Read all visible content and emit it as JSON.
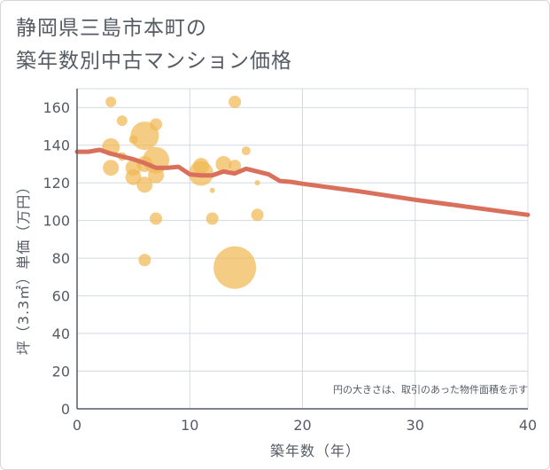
{
  "title_lines": [
    "静岡県三島市本町の",
    "築年数別中古マンション価格"
  ],
  "chart_data": {
    "type": "scatter",
    "title": "静岡県三島市本町の築年数別中古マンション価格",
    "xlabel": "築年数（年）",
    "ylabel": "坪（3.3㎡）単価（万円）",
    "xlim": [
      0,
      40
    ],
    "ylim": [
      0,
      170
    ],
    "x_ticks": [
      0,
      10,
      20,
      30,
      40
    ],
    "y_ticks": [
      0,
      20,
      40,
      60,
      80,
      100,
      120,
      140,
      160
    ],
    "grid": true,
    "note": "円の大きさは、取引のあった物件面積を示す",
    "colors": {
      "bubble": "#f0b855",
      "trend": "#d9705c",
      "axis_text": "#555b63",
      "grid": "#d3d9e0"
    },
    "bubbles": [
      {
        "x": 3,
        "y": 163,
        "size": 6
      },
      {
        "x": 4,
        "y": 153,
        "size": 6
      },
      {
        "x": 3,
        "y": 139,
        "size": 10
      },
      {
        "x": 3,
        "y": 128,
        "size": 9
      },
      {
        "x": 4,
        "y": 134,
        "size": 5
      },
      {
        "x": 5,
        "y": 143,
        "size": 5
      },
      {
        "x": 5,
        "y": 128,
        "size": 9
      },
      {
        "x": 5,
        "y": 123,
        "size": 9
      },
      {
        "x": 6,
        "y": 145,
        "size": 16
      },
      {
        "x": 6,
        "y": 130,
        "size": 9
      },
      {
        "x": 6,
        "y": 119,
        "size": 9
      },
      {
        "x": 6,
        "y": 79,
        "size": 7
      },
      {
        "x": 7,
        "y": 151,
        "size": 7
      },
      {
        "x": 7,
        "y": 132,
        "size": 15
      },
      {
        "x": 7,
        "y": 124,
        "size": 9
      },
      {
        "x": 7,
        "y": 101,
        "size": 7
      },
      {
        "x": 11,
        "y": 125,
        "size": 14
      },
      {
        "x": 11,
        "y": 129,
        "size": 9
      },
      {
        "x": 12,
        "y": 116,
        "size": 3
      },
      {
        "x": 12,
        "y": 101,
        "size": 7
      },
      {
        "x": 13,
        "y": 130,
        "size": 9
      },
      {
        "x": 14,
        "y": 163,
        "size": 7
      },
      {
        "x": 14,
        "y": 129,
        "size": 7
      },
      {
        "x": 14,
        "y": 75,
        "size": 24
      },
      {
        "x": 15,
        "y": 137,
        "size": 5
      },
      {
        "x": 16,
        "y": 120,
        "size": 3
      },
      {
        "x": 16,
        "y": 103,
        "size": 7
      }
    ],
    "trend": {
      "x": [
        0,
        1,
        2,
        3,
        4,
        5,
        6,
        7,
        8,
        9,
        10,
        11,
        12,
        13,
        14,
        15,
        16,
        17,
        18,
        19,
        20,
        25,
        30,
        35,
        40
      ],
      "y": [
        136.5,
        136.5,
        137.5,
        135.5,
        134.0,
        132.5,
        130.5,
        128.0,
        128.0,
        128.5,
        124.5,
        124.0,
        124.0,
        126.0,
        125.0,
        127.5,
        126.0,
        124.5,
        121.0,
        120.5,
        119.5,
        115.5,
        111.0,
        107.0,
        103.0
      ]
    }
  }
}
